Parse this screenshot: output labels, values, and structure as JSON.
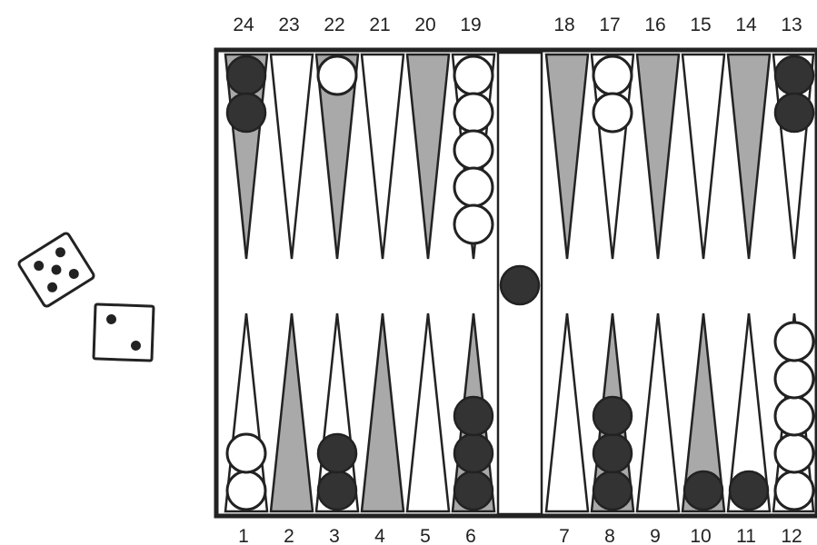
{
  "board": {
    "top_labels": [
      "24",
      "23",
      "22",
      "21",
      "20",
      "19",
      "18",
      "17",
      "16",
      "15",
      "14",
      "13"
    ],
    "bottom_labels": [
      "1",
      "2",
      "3",
      "4",
      "5",
      "6",
      "7",
      "8",
      "9",
      "10",
      "11",
      "12"
    ],
    "colors": {
      "frame": "#222222",
      "dark_point": "#a9a9a9",
      "light_point": "#ffffff",
      "white_checker": "#ffffff",
      "black_checker": "#333333"
    }
  },
  "checkers": {
    "p1": {
      "color": "white",
      "count": 2
    },
    "p3": {
      "color": "black",
      "count": 2
    },
    "p6": {
      "color": "black",
      "count": 3
    },
    "p8": {
      "color": "black",
      "count": 3
    },
    "p10": {
      "color": "black",
      "count": 1
    },
    "p11": {
      "color": "black",
      "count": 1
    },
    "p12": {
      "color": "white",
      "count": 5
    },
    "p13": {
      "color": "black",
      "count": 2
    },
    "p17": {
      "color": "white",
      "count": 2
    },
    "p19": {
      "color": "white",
      "count": 5
    },
    "p22": {
      "color": "white",
      "count": 1
    },
    "p24": {
      "color": "black",
      "count": 2
    },
    "bar": {
      "color": "black",
      "count": 1
    }
  },
  "dice": [
    {
      "face": 5
    },
    {
      "face": 2
    }
  ]
}
